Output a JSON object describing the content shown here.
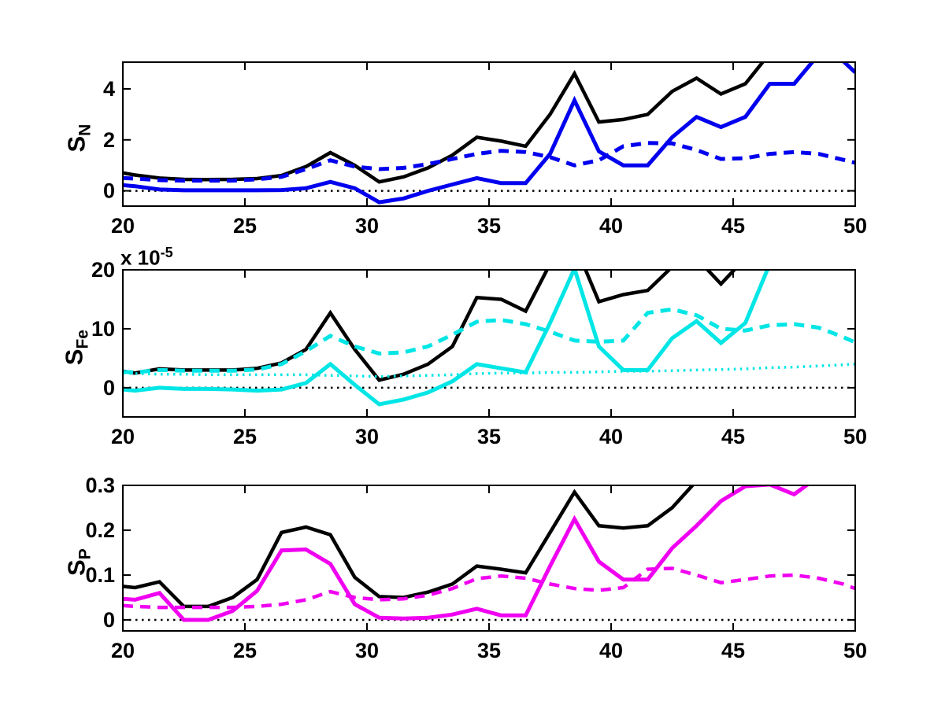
{
  "figure": {
    "background": "#ffffff",
    "axis_color": "#000000"
  },
  "labels": {
    "sn": {
      "base": "S",
      "sub": "N"
    },
    "sfe": {
      "base": "S",
      "sub": "Fe"
    },
    "sp": {
      "base": "S",
      "sub": "P"
    },
    "multiplier": {
      "text": "x 10",
      "exp": "-5"
    }
  },
  "chart_data": [
    {
      "type": "line",
      "id": "sn",
      "ylabel": "S_N",
      "xlim": [
        20,
        50
      ],
      "ylim": [
        -0.6,
        5.05
      ],
      "xticks": [
        20,
        25,
        30,
        35,
        40,
        45,
        50
      ],
      "xtick_labels": [
        "20",
        "25",
        "30",
        "35",
        "40",
        "45",
        "50"
      ],
      "yticks": [
        0,
        2,
        4
      ],
      "ytick_labels": [
        "0",
        "2",
        "4"
      ],
      "grid": false,
      "x": [
        20,
        20.5,
        21.5,
        22.5,
        23.5,
        24.5,
        25.5,
        26.5,
        27.5,
        28.5,
        29.5,
        30.5,
        31.5,
        32.5,
        33.5,
        34.5,
        35.5,
        36.5,
        37.5,
        38.5,
        39.5,
        40.5,
        41.5,
        42.5,
        43.5,
        44.5,
        45.5,
        46.5,
        47.5,
        48.5,
        49.5,
        50
      ],
      "series": [
        {
          "name": "zero-dotted",
          "color": "#000000",
          "style": "dotted",
          "width": 2.5,
          "constant": 0
        },
        {
          "name": "black-solid",
          "color": "#000000",
          "style": "solid",
          "width": 4.5,
          "values": [
            0.7,
            0.62,
            0.5,
            0.45,
            0.44,
            0.45,
            0.48,
            0.6,
            0.95,
            1.5,
            1.0,
            0.35,
            0.55,
            0.9,
            1.4,
            2.1,
            1.95,
            1.75,
            3.0,
            4.6,
            2.7,
            2.8,
            3.0,
            3.9,
            4.42,
            3.8,
            4.2,
            5.4,
            6.5,
            6.5,
            6.5,
            6.5
          ]
        },
        {
          "name": "blue-dashed",
          "color": "#0000EE",
          "style": "dashed",
          "width": 5,
          "values": [
            0.5,
            0.48,
            0.42,
            0.4,
            0.4,
            0.4,
            0.45,
            0.55,
            0.85,
            1.2,
            0.95,
            0.85,
            0.9,
            1.05,
            1.25,
            1.45,
            1.57,
            1.52,
            1.32,
            1.0,
            1.2,
            1.75,
            1.88,
            1.86,
            1.6,
            1.25,
            1.28,
            1.45,
            1.52,
            1.45,
            1.22,
            1.1
          ]
        },
        {
          "name": "blue-solid",
          "color": "#0000EE",
          "style": "solid",
          "width": 5,
          "values": [
            0.22,
            0.18,
            0.05,
            0.02,
            0.02,
            0.02,
            0.02,
            0.03,
            0.1,
            0.35,
            0.1,
            -0.45,
            -0.3,
            0.0,
            0.25,
            0.5,
            0.3,
            0.3,
            1.45,
            3.55,
            1.55,
            1.0,
            1.0,
            2.1,
            2.9,
            2.5,
            2.9,
            4.2,
            4.2,
            5.35,
            5.1,
            4.65
          ]
        }
      ]
    },
    {
      "type": "line",
      "id": "sfe",
      "ylabel": "S_Fe",
      "y_multiplier": "x 10^-5",
      "xlim": [
        20,
        50
      ],
      "ylim": [
        -4.95,
        20
      ],
      "xticks": [
        20,
        25,
        30,
        35,
        40,
        45,
        50
      ],
      "xtick_labels": [
        "20",
        "25",
        "30",
        "35",
        "40",
        "45",
        "50"
      ],
      "yticks": [
        0,
        10,
        20
      ],
      "ytick_labels": [
        "0",
        "10",
        "20"
      ],
      "grid": false,
      "x": [
        20,
        20.5,
        21.5,
        22.5,
        23.5,
        24.5,
        25.5,
        26.5,
        27.5,
        28.5,
        29.5,
        30.5,
        31.5,
        32.5,
        33.5,
        34.5,
        35.5,
        36.5,
        37.5,
        38.5,
        39.5,
        40.5,
        41.5,
        42.5,
        43.5,
        44.5,
        45.5,
        46.5,
        47.5,
        48.5,
        49.5,
        50
      ],
      "series": [
        {
          "name": "zero-dotted",
          "color": "#000000",
          "style": "dotted",
          "width": 2.5,
          "constant": 0
        },
        {
          "name": "black-solid",
          "color": "#000000",
          "style": "solid",
          "width": 4.5,
          "values": [
            2.8,
            2.5,
            3.2,
            3.0,
            3.0,
            3.0,
            3.3,
            4.2,
            6.5,
            12.7,
            6.5,
            1.3,
            2.3,
            4.0,
            7.0,
            15.3,
            15.0,
            13.0,
            21.0,
            24.5,
            14.6,
            15.8,
            16.5,
            20.5,
            22.0,
            17.6,
            22.0,
            25.0,
            25.0,
            25.0,
            25.0,
            25.0
          ]
        },
        {
          "name": "cyan-dotted",
          "color": "#00E5E5",
          "style": "dotted",
          "width": 3.5,
          "values": [
            2.5,
            2.4,
            2.3,
            2.3,
            2.2,
            2.2,
            2.2,
            2.2,
            2.2,
            2.1,
            2.0,
            1.9,
            2.0,
            2.1,
            2.2,
            2.4,
            2.5,
            2.5,
            2.6,
            2.6,
            2.7,
            2.8,
            2.8,
            2.9,
            3.0,
            3.1,
            3.2,
            3.4,
            3.5,
            3.7,
            3.9,
            4.0
          ]
        },
        {
          "name": "cyan-dashed",
          "color": "#00E5E5",
          "style": "dashed",
          "width": 5,
          "values": [
            2.7,
            2.6,
            3.0,
            2.9,
            2.9,
            2.9,
            3.1,
            4.0,
            6.2,
            8.8,
            7.0,
            5.8,
            6.0,
            7.0,
            9.0,
            11.2,
            11.5,
            10.8,
            9.5,
            8.0,
            7.8,
            8.0,
            12.7,
            13.3,
            12.3,
            10.0,
            9.7,
            10.6,
            10.8,
            10.2,
            8.6,
            7.7
          ]
        },
        {
          "name": "cyan-solid",
          "color": "#00E5E5",
          "style": "solid",
          "width": 5,
          "values": [
            -0.3,
            -0.5,
            0.0,
            -0.2,
            -0.2,
            -0.3,
            -0.5,
            -0.3,
            0.8,
            4.0,
            0.5,
            -2.8,
            -2.0,
            -0.8,
            1.1,
            4.0,
            3.3,
            2.6,
            11.0,
            20.2,
            7.0,
            3.0,
            3.0,
            8.4,
            11.3,
            7.6,
            11.0,
            21.0,
            25.0,
            25.0,
            25.0,
            25.0
          ]
        }
      ]
    },
    {
      "type": "line",
      "id": "sp",
      "ylabel": "S_P",
      "xlim": [
        20,
        50
      ],
      "ylim": [
        -0.0245,
        0.3
      ],
      "xticks": [
        20,
        25,
        30,
        35,
        40,
        45,
        50
      ],
      "xtick_labels": [
        "20",
        "25",
        "30",
        "35",
        "40",
        "45",
        "50"
      ],
      "yticks": [
        0,
        0.1,
        0.2,
        0.3
      ],
      "ytick_labels": [
        "0",
        "0.1",
        "0.2",
        "0.3"
      ],
      "grid": false,
      "x": [
        20,
        20.5,
        21.5,
        22.5,
        23.5,
        24.5,
        25.5,
        26.5,
        27.5,
        28.5,
        29.5,
        30.5,
        31.5,
        32.5,
        33.5,
        34.5,
        35.5,
        36.5,
        37.5,
        38.5,
        39.5,
        40.5,
        41.5,
        42.5,
        43.5,
        44.5,
        45.5,
        46.5,
        47.5,
        48.5,
        49.5,
        50
      ],
      "series": [
        {
          "name": "zero-dotted",
          "color": "#000000",
          "style": "dotted",
          "width": 2.5,
          "constant": 0
        },
        {
          "name": "black-solid",
          "color": "#000000",
          "style": "solid",
          "width": 4.5,
          "values": [
            0.075,
            0.072,
            0.085,
            0.03,
            0.03,
            0.05,
            0.09,
            0.195,
            0.207,
            0.19,
            0.095,
            0.052,
            0.05,
            0.062,
            0.08,
            0.12,
            0.113,
            0.105,
            0.195,
            0.285,
            0.21,
            0.205,
            0.21,
            0.25,
            0.31,
            0.34,
            0.34,
            0.34,
            0.34,
            0.34,
            0.34,
            0.34
          ]
        },
        {
          "name": "magenta-dashed",
          "color": "#F000F0",
          "style": "dashed",
          "width": 4.5,
          "values": [
            0.032,
            0.03,
            0.028,
            0.028,
            0.028,
            0.028,
            0.03,
            0.035,
            0.045,
            0.063,
            0.05,
            0.045,
            0.047,
            0.055,
            0.07,
            0.092,
            0.098,
            0.093,
            0.08,
            0.07,
            0.066,
            0.072,
            0.113,
            0.115,
            0.1,
            0.083,
            0.09,
            0.098,
            0.1,
            0.093,
            0.08,
            0.07
          ]
        },
        {
          "name": "magenta-solid",
          "color": "#F000F0",
          "style": "solid",
          "width": 5,
          "values": [
            0.047,
            0.045,
            0.06,
            0.0,
            0.0,
            0.02,
            0.065,
            0.155,
            0.157,
            0.125,
            0.035,
            0.005,
            0.003,
            0.005,
            0.012,
            0.025,
            0.01,
            0.01,
            0.12,
            0.225,
            0.13,
            0.09,
            0.09,
            0.16,
            0.21,
            0.265,
            0.298,
            0.302,
            0.28,
            0.32,
            0.33,
            0.33
          ]
        }
      ]
    }
  ]
}
